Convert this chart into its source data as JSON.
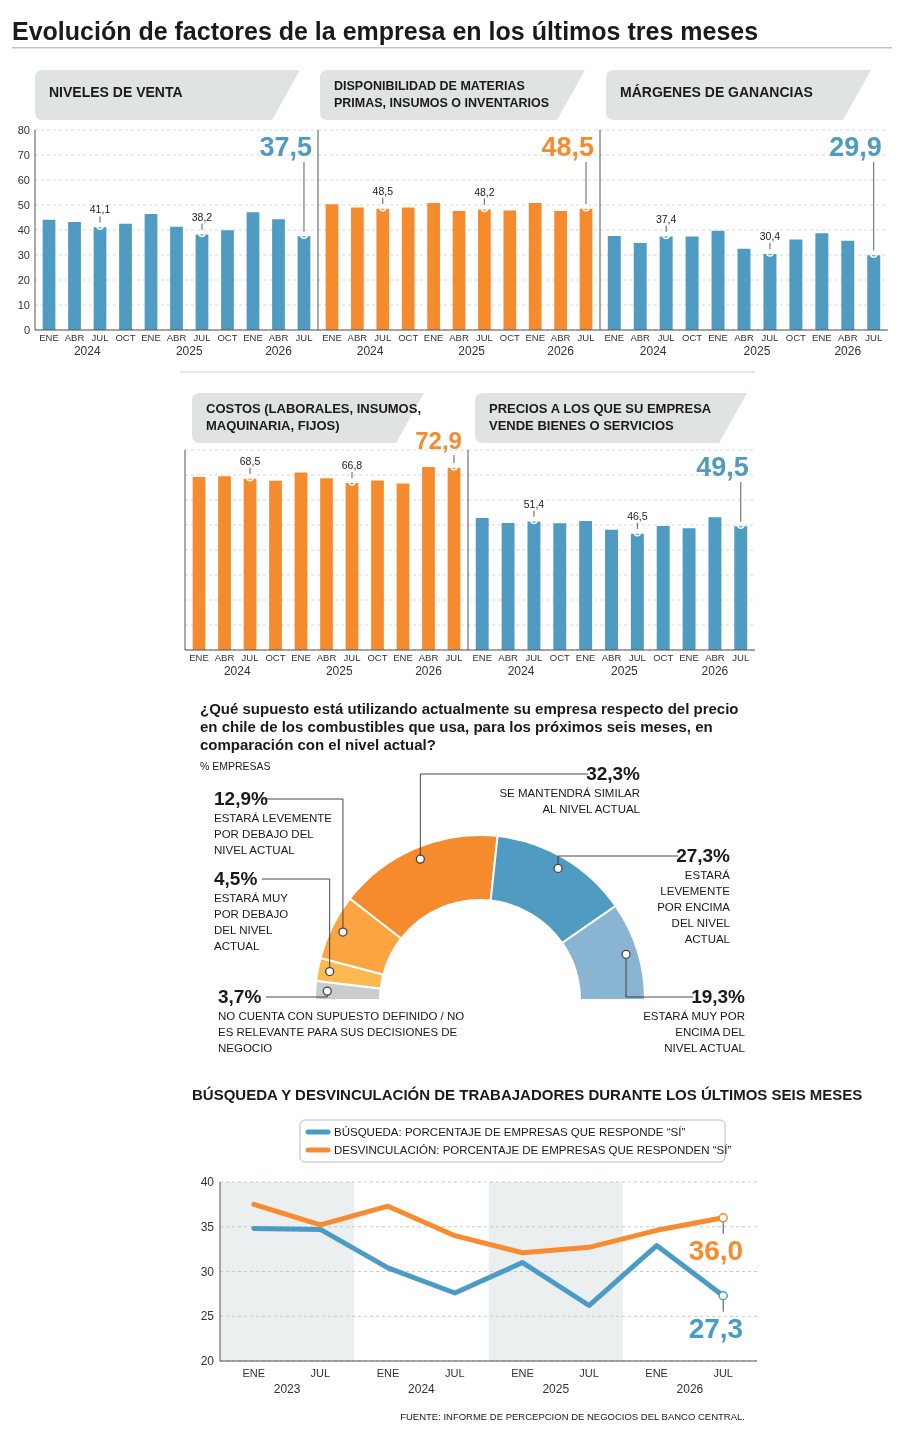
{
  "chart_data": [
    {
      "type": "bar",
      "title": "Evolución de factores de la empresa en los últimos tres meses",
      "subtitle": "NIVELES DE VENTA",
      "categories": [
        "ENE",
        "ABR",
        "JUL",
        "OCT",
        "ENE",
        "ABR",
        "JUL",
        "OCT",
        "ENE",
        "ABR",
        "JUL"
      ],
      "values": [
        44.1,
        43.2,
        41.1,
        42.5,
        46.4,
        41.3,
        38.2,
        39.9,
        47.1,
        44.3,
        37.5
      ],
      "color": "#4f9bc1",
      "value_labels": [
        null,
        null,
        "41,1",
        null,
        null,
        null,
        "38,2",
        null,
        null,
        null,
        "37,5"
      ],
      "ylim": [
        0,
        80
      ],
      "yticks": [
        0,
        10,
        20,
        30,
        40,
        50,
        60,
        70,
        80
      ],
      "grid": "y",
      "annotations": [
        "2024",
        "2025",
        "2026"
      ]
    },
    {
      "type": "bar",
      "subtitle": "DISPONIBILIDAD DE MATERIAS PRIMAS, INSUMOS O INVENTARIOS",
      "categories": [
        "ENE",
        "ABR",
        "JUL",
        "OCT",
        "ENE",
        "ABR",
        "JUL",
        "OCT",
        "ENE",
        "ABR",
        "JUL"
      ],
      "values": [
        50.3,
        49.0,
        48.5,
        49.0,
        50.8,
        47.6,
        48.2,
        47.8,
        50.8,
        47.6,
        48.5
      ],
      "color": "#f68b2e",
      "value_labels": [
        null,
        null,
        "48,5",
        null,
        null,
        null,
        "48,2",
        null,
        null,
        null,
        "48,5"
      ],
      "ylim": [
        0,
        80
      ],
      "yticks": [
        0,
        10,
        20,
        30,
        40,
        50,
        60,
        70,
        80
      ],
      "grid": "y",
      "tick_labels": "x",
      "annotations": [
        "2024",
        "2025",
        "2026"
      ]
    },
    {
      "type": "bar",
      "subtitle": "MÁRGENES DE GANANCIAS",
      "categories": [
        "ENE",
        "ABR",
        "JUL",
        "OCT",
        "ENE",
        "ABR",
        "JUL",
        "OCT",
        "ENE",
        "ABR",
        "JUL"
      ],
      "values": [
        37.6,
        34.8,
        37.4,
        37.4,
        39.7,
        32.5,
        30.4,
        36.2,
        38.7,
        35.7,
        29.9
      ],
      "color": "#4f9bc1",
      "value_labels": [
        null,
        null,
        "37,4",
        null,
        null,
        null,
        "30,4",
        null,
        null,
        null,
        "29,9"
      ],
      "ylim": [
        0,
        80
      ],
      "yticks": [
        0,
        10,
        20,
        30,
        40,
        50,
        60,
        70,
        80
      ],
      "grid": "y",
      "tick_labels": "x",
      "annotations": [
        "2024",
        "2025",
        "2026"
      ]
    },
    {
      "type": "bar",
      "subtitle": "COSTOS (LABORALES, INSUMOS, MAQUINARIA, FIJOS)",
      "categories": [
        "ENE",
        "ABR",
        "JUL",
        "OCT",
        "ENE",
        "ABR",
        "JUL",
        "OCT",
        "ENE",
        "ABR",
        "JUL"
      ],
      "values": [
        69.2,
        69.5,
        68.5,
        67.7,
        71.0,
        68.7,
        66.8,
        67.8,
        66.6,
        73.2,
        72.9
      ],
      "color": "#f68b2e",
      "value_labels": [
        null,
        null,
        "68,5",
        null,
        null,
        null,
        "66,8",
        null,
        null,
        null,
        "72,9"
      ],
      "ylim": [
        0,
        80
      ],
      "yticks": [
        0,
        10,
        20,
        30,
        40,
        50,
        60,
        70,
        80
      ],
      "grid": "y",
      "tick_labels": "x",
      "annotations": [
        "2024",
        "2025",
        "2026"
      ]
    },
    {
      "type": "bar",
      "subtitle": "PRECIOS A LOS QUE SU EMPRESA VENDE BIENES O SERVICIOS",
      "categories": [
        "ENE",
        "ABR",
        "JUL",
        "OCT",
        "ENE",
        "ABR",
        "JUL",
        "OCT",
        "ENE",
        "ABR",
        "JUL"
      ],
      "values": [
        52.8,
        50.8,
        51.4,
        50.7,
        51.6,
        48.1,
        46.5,
        49.6,
        48.7,
        53.1,
        49.5
      ],
      "color": "#4f9bc1",
      "value_labels": [
        null,
        null,
        "51,4",
        null,
        null,
        null,
        "46,5",
        null,
        null,
        null,
        "49,5"
      ],
      "ylim": [
        0,
        80
      ],
      "yticks": [
        0,
        10,
        20,
        30,
        40,
        50,
        60,
        70,
        80
      ],
      "grid": "y",
      "tick_labels": "x",
      "annotations": [
        "2024",
        "2025",
        "2026"
      ]
    },
    {
      "type": "donut",
      "title": "¿Qué supuesto está utilizando actualmente su empresa respecto del precio en chile de los combustibles que usa, para los próximos seis meses, en comparación con el nivel actual?",
      "subtitle": "% EMPRESAS",
      "categories": [
        "NO CUENTA CON SUPUESTO DEFINIDO / NO ES RELEVANTE PARA SUS DECISIONES DE NEGOCIO",
        "ESTARÁ MUY POR DEBAJO DEL NIVEL ACTUAL",
        "ESTARÁ LEVEMENTE POR DEBAJO DEL NIVEL ACTUAL",
        "SE MANTENDRÁ SIMILAR AL NIVEL ACTUAL",
        "ESTARÁ LEVEMENTE POR ENCIMA DEL NIVEL ACTUAL",
        "ESTARÁ MUY POR ENCIMA DEL NIVEL ACTUAL"
      ],
      "values": [
        3.7,
        4.5,
        12.9,
        32.3,
        27.3,
        19.3
      ],
      "colors": [
        "#c9cdcf",
        "#fdb84f",
        "#fca43f",
        "#f68b2e",
        "#4f9bc1",
        "#89b5d2"
      ],
      "value_labels": [
        "3,7%",
        "4,5%",
        "12,9%",
        "32,3%",
        "27,3%",
        "19,3%"
      ]
    },
    {
      "type": "line",
      "title": "BÚSQUEDA Y DESVINCULACIÓN DE TRABAJADORES DURANTE LOS ÚLTIMOS SEIS MESES",
      "x": [
        "2023-01",
        "2023-07",
        "2024-01",
        "2024-07",
        "2025-01",
        "2025-07",
        "2026-01",
        "2026-07"
      ],
      "xlim": [
        "2022-10",
        "2026-10"
      ],
      "xticks": [
        {
          "value": "2023-01",
          "label": "ENE"
        },
        {
          "value": "2023-07",
          "label": "JUL"
        },
        {
          "value": "2024-01",
          "label": "ENE"
        },
        {
          "value": "2024-07",
          "label": "JUL"
        },
        {
          "value": "2025-01",
          "label": "ENE"
        },
        {
          "value": "2025-07",
          "label": "JUL"
        },
        {
          "value": "2026-01",
          "label": "ENE"
        },
        {
          "value": "2026-07",
          "label": "JUL"
        }
      ],
      "ylim": [
        20,
        40
      ],
      "yticks": [
        20,
        25,
        30,
        35,
        40
      ],
      "grid": "y",
      "legend": "top",
      "line_style": "solid",
      "series": [
        {
          "name": "BÚSQUEDA: PORCENTAJE DE EMPRESAS QUE RESPONDE “SÍ”",
          "color": "#4a9cc6",
          "values": [
            34.8,
            34.7,
            30.4,
            27.6,
            31.0,
            26.2,
            32.9,
            27.3
          ],
          "value_labels": [
            null,
            null,
            null,
            null,
            null,
            null,
            null,
            "27,3"
          ]
        },
        {
          "name": "DESVINCULACIÓN: PORCENTAJE DE EMPRESAS QUE RESPONDEN “SÍ”",
          "color": "#f88b2f",
          "values": [
            37.5,
            35.2,
            37.3,
            34.0,
            32.1,
            32.7,
            34.6,
            36.0
          ],
          "value_labels": [
            null,
            null,
            null,
            null,
            null,
            null,
            null,
            "36,0"
          ]
        }
      ],
      "bands": [
        {
          "axis": "x",
          "from": "2022-10",
          "to": "2023-10",
          "color": "#eceff0"
        },
        {
          "axis": "x",
          "from": "2024-10",
          "to": "2025-10",
          "color": "#eceff0"
        }
      ],
      "annotations": [
        "2023",
        "2024",
        "2025",
        "2026",
        "FUENTE: INFORME DE PERCEPCION DE NEGOCIOS DEL BANCO CENTRAL."
      ]
    }
  ]
}
